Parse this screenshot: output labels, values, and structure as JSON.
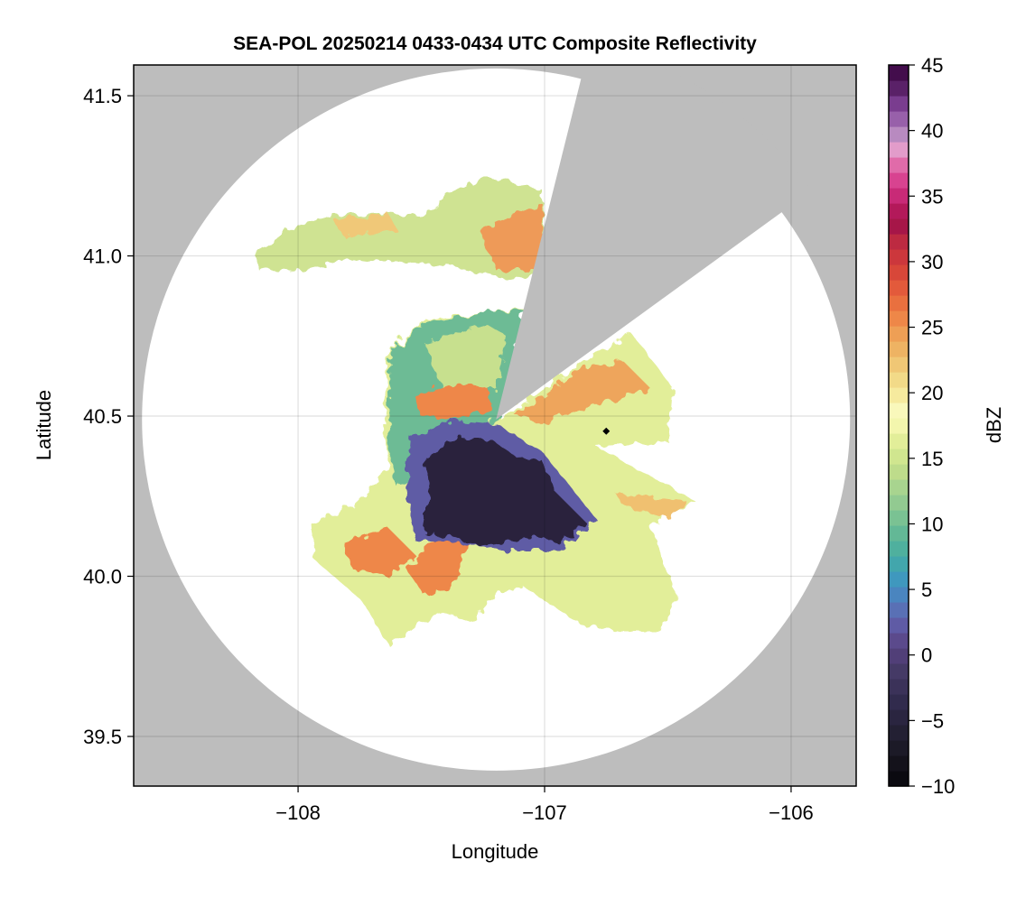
{
  "chart_data": {
    "type": "heatmap",
    "title": "SEA-POL 20250214 0433-0434 UTC Composite Reflectivity",
    "xlabel": "Longitude",
    "ylabel": "Latitude",
    "xlim": [
      -108.667,
      -105.736
    ],
    "ylim": [
      39.345,
      41.596
    ],
    "xticks": [
      -108,
      -107,
      -106
    ],
    "xtick_labels": [
      "−108",
      "−107",
      "−106"
    ],
    "yticks": [
      39.5,
      40.0,
      40.5,
      41.0,
      41.5
    ],
    "ytick_labels": [
      "39.5",
      "40.0",
      "40.5",
      "41.0",
      "41.5"
    ],
    "grid": true,
    "radar_center": {
      "lon": -107.197,
      "lat": 40.489
    },
    "blocked_sector_azimuth_deg": [
      14,
      54
    ],
    "marker": {
      "lon": -106.75,
      "lat": 40.453
    },
    "colorbar": {
      "label": "dBZ",
      "range": [
        -10,
        45
      ],
      "ticks": [
        -10,
        -5,
        0,
        5,
        10,
        15,
        20,
        25,
        30,
        35,
        40,
        45
      ],
      "tick_labels": [
        "−10",
        "−5",
        "0",
        "5",
        "10",
        "15",
        "20",
        "25",
        "30",
        "35",
        "40",
        "45"
      ],
      "colors": [
        "#0b0a10",
        "#14121b",
        "#1c1a27",
        "#232033",
        "#2a2540",
        "#312b4d",
        "#3b3259",
        "#453a66",
        "#513f78",
        "#5b4a8c",
        "#5f5ba5",
        "#5970b5",
        "#4a85bf",
        "#3f98be",
        "#42a6ac",
        "#4fb09e",
        "#63b896",
        "#7ac293",
        "#92ca91",
        "#a8d48f",
        "#bedc8b",
        "#d0e68f",
        "#e2ee99",
        "#f3f6ad",
        "#f9f8bb",
        "#f6ea9e",
        "#f2da88",
        "#f0c775",
        "#eeb363",
        "#ee9f55",
        "#ee8748",
        "#e9703f",
        "#e35a3b",
        "#d84739",
        "#cc373c",
        "#bd2a41",
        "#a61648",
        "#b3195a",
        "#c82a77",
        "#d84390",
        "#e06ba9",
        "#e29cca",
        "#b88ac0",
        "#9860aa",
        "#7a3d8f",
        "#5a2168",
        "#430d4c"
      ],
      "no_data_color": "#bdbdbd"
    }
  }
}
